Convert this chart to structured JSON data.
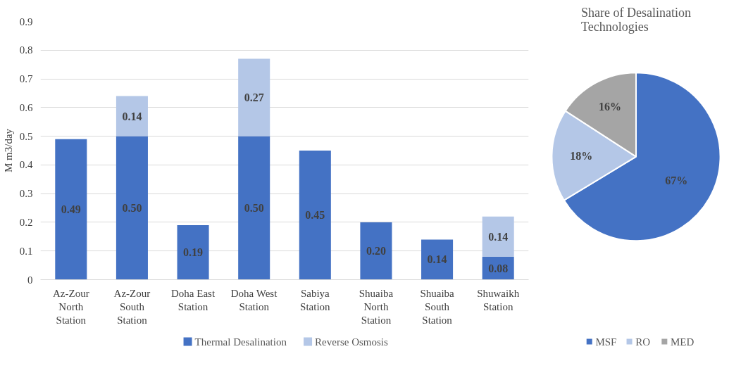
{
  "chart_data": [
    {
      "type": "bar",
      "stacked": true,
      "ylabel": "M m3/day",
      "categories": [
        "Az-Zour\nNorth\nStation",
        "Az-Zour\nSouth\nStation",
        "Doha East\nStation",
        "Doha West\nStation",
        "Sabiya\nStation",
        "Shuaiba\nNorth\nStation",
        "Shuaiba\nSouth\nStation",
        "Shuwaikh\nStation"
      ],
      "series": [
        {
          "name": "Thermal Desalination",
          "color": "#4472c4",
          "values": [
            0.49,
            0.5,
            0.19,
            0.5,
            0.45,
            0.2,
            0.14,
            0.08
          ],
          "value_labels": [
            "0.49",
            "0.50",
            "0.19",
            "0.50",
            "0.45",
            "0.20",
            "0.14",
            "0.08"
          ]
        },
        {
          "name": "Reverse Osmosis",
          "color": "#b4c7e7",
          "values": [
            null,
            0.14,
            null,
            0.27,
            null,
            null,
            null,
            0.14
          ],
          "value_labels": [
            null,
            "0.14",
            null,
            "0.27",
            null,
            null,
            null,
            "0.14"
          ]
        }
      ],
      "ylim": [
        0,
        0.9
      ],
      "yticks": [
        0,
        0.1,
        0.2,
        0.3,
        0.4,
        0.5,
        0.6,
        0.7,
        0.8,
        0.9
      ],
      "grid": "y",
      "legend": "bottom"
    },
    {
      "type": "pie",
      "title": "Share of Desalination Technologies",
      "categories": [
        "MSF",
        "RO",
        "MED"
      ],
      "values": [
        67,
        18,
        16
      ],
      "colors": [
        "#4472c4",
        "#b4c7e7",
        "#a5a5a5"
      ],
      "value_labels": [
        "67%",
        "18%",
        "16%"
      ],
      "legend": "bottom"
    }
  ]
}
